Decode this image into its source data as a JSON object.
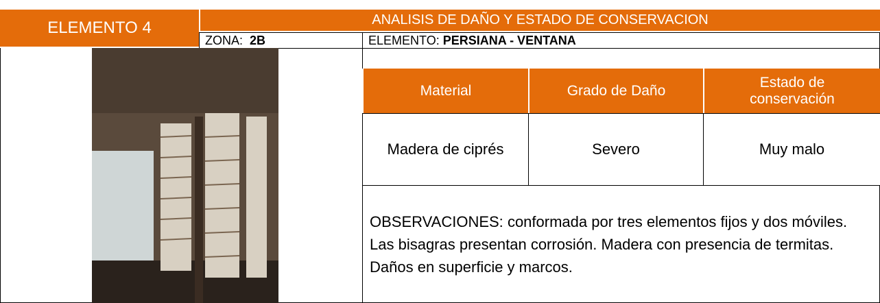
{
  "element_label": "ELEMENTO 4",
  "header": {
    "title": "ANALISIS DE DAÑO Y ESTADO DE CONSERVACION"
  },
  "zona": {
    "label": "ZONA:",
    "value": "2B"
  },
  "elemento": {
    "label": "ELEMENTO:",
    "value": "PERSIANA - VENTANA"
  },
  "table": {
    "headers": [
      "Material",
      "Grado de Daño",
      "Estado de conservación"
    ],
    "rows": [
      [
        "Madera de ciprés",
        "Severo",
        "Muy malo"
      ]
    ]
  },
  "observations": {
    "label": "OBSERVACIONES:",
    "text": "conformada por tres elementos fijos y dos móviles. Las bisagras presentan corrosión. Madera con presencia de termitas. Daños en superficie y marcos."
  }
}
